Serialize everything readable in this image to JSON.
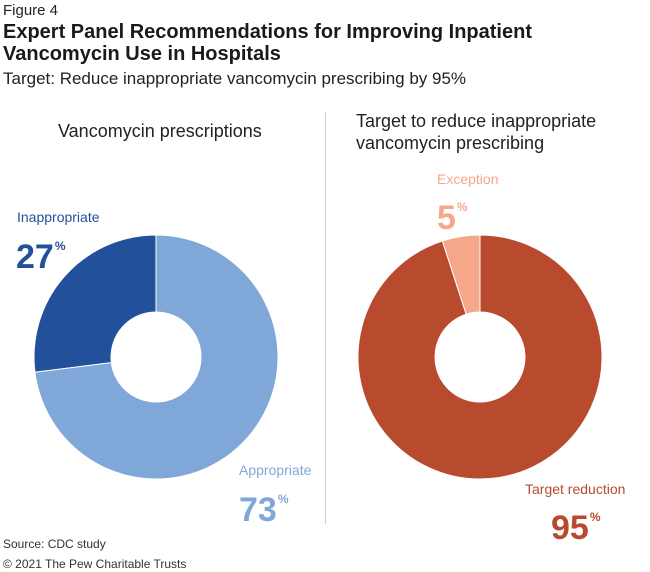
{
  "figure_label": "Figure 4",
  "title": "Expert Panel Recommendations for Improving Inpatient Vancomycin Use in Hospitals",
  "subtitle": "Target: Reduce inappropriate vancomycin prescribing by 95%",
  "source": "Source: CDC study",
  "copyright": "© 2021 The Pew Charitable Trusts",
  "colors": {
    "inappropriate": "#23509b",
    "appropriate": "#7fa8d9",
    "exception": "#f5a889",
    "target_reduction": "#b84a2e"
  },
  "chart_data": [
    {
      "type": "pie",
      "title": "Vancomycin prescriptions",
      "unit": "%",
      "slices": [
        {
          "label": "Inappropriate",
          "value": 27,
          "color": "#23509b"
        },
        {
          "label": "Appropriate",
          "value": 73,
          "color": "#7fa8d9"
        }
      ]
    },
    {
      "type": "pie",
      "title": "Target to reduce inappropriate vancomycin prescribing",
      "unit": "%",
      "slices": [
        {
          "label": "Exception",
          "value": 5,
          "color": "#f5a889"
        },
        {
          "label": "Target reduction",
          "value": 95,
          "color": "#b84a2e"
        }
      ]
    }
  ]
}
